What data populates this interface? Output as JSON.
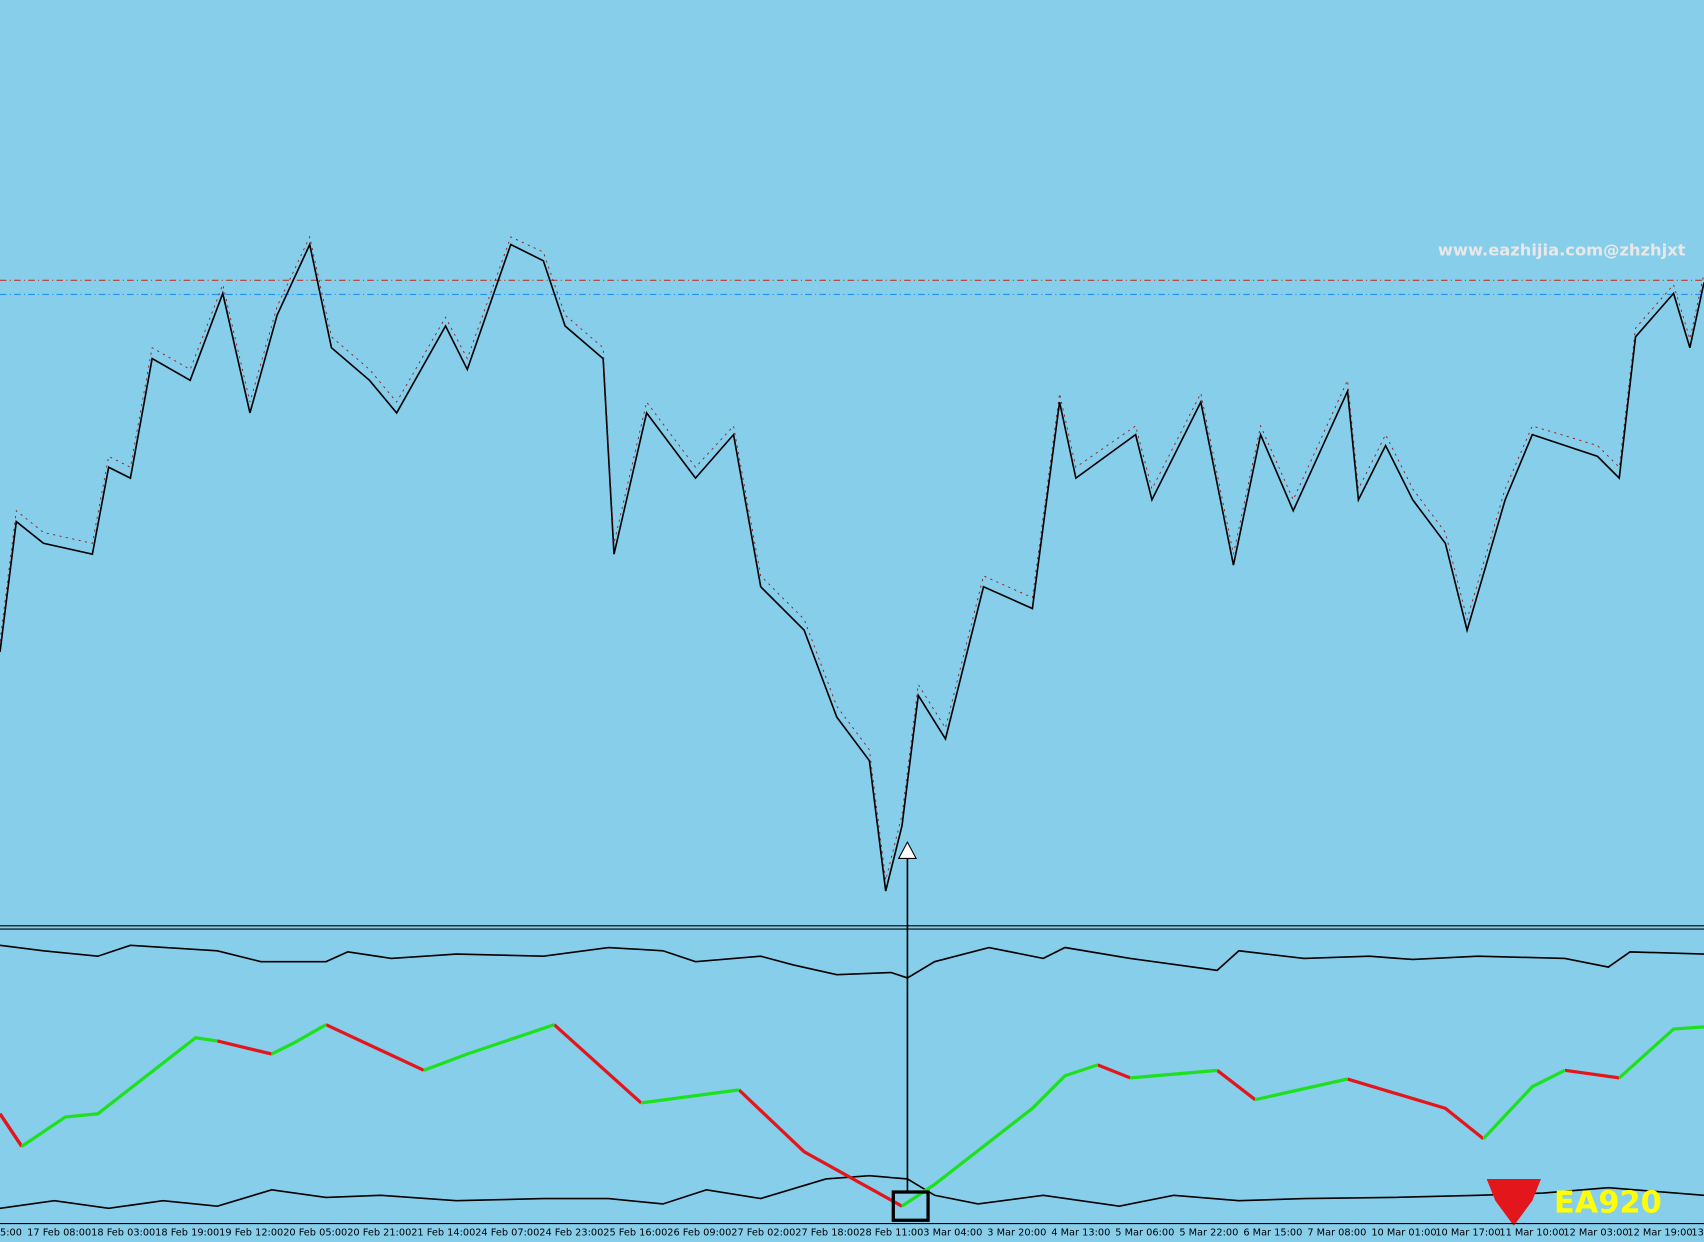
{
  "watermark": "www.eazhijia.com@zhzhjxt",
  "logo": "EA920",
  "time_labels": [
    "5:00",
    "17 Feb 08:00",
    "18 Feb 03:00",
    "18 Feb 19:00",
    "19 Feb 12:00",
    "20 Feb 05:00",
    "20 Feb 21:00",
    "21 Feb 14:00",
    "24 Feb 07:00",
    "24 Feb 23:00",
    "25 Feb 16:00",
    "26 Feb 09:00",
    "27 Feb 02:00",
    "27 Feb 18:00",
    "28 Feb 11:00",
    "3 Mar 04:00",
    "3 Mar 20:00",
    "4 Mar 13:00",
    "5 Mar 06:00",
    "5 Mar 22:00",
    "6 Mar 15:00",
    "7 Mar 08:00",
    "10 Mar 01:00",
    "10 Mar 17:00",
    "11 Mar 10:00",
    "12 Mar 03:00",
    "12 Mar 19:00",
    "13"
  ]
}
